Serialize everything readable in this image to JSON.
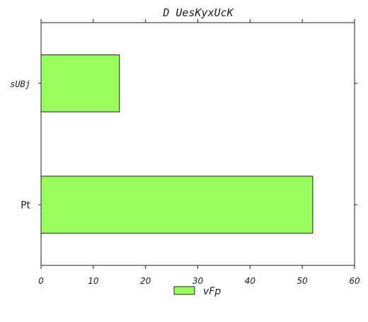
{
  "chart_data": {
    "type": "bar",
    "orientation": "horizontal",
    "title": "D UesKyxUcK",
    "xlabel": "",
    "ylabel": "",
    "categories": [
      "sUBj",
      "Pt"
    ],
    "series": [
      {
        "name": "vFp",
        "values": [
          15,
          52
        ],
        "color": "#99ff5c"
      }
    ],
    "xlim": [
      0,
      60
    ],
    "xticks": [
      0,
      10,
      20,
      30,
      40,
      50,
      60
    ],
    "grid": false,
    "legend_position": "bottom-center"
  }
}
